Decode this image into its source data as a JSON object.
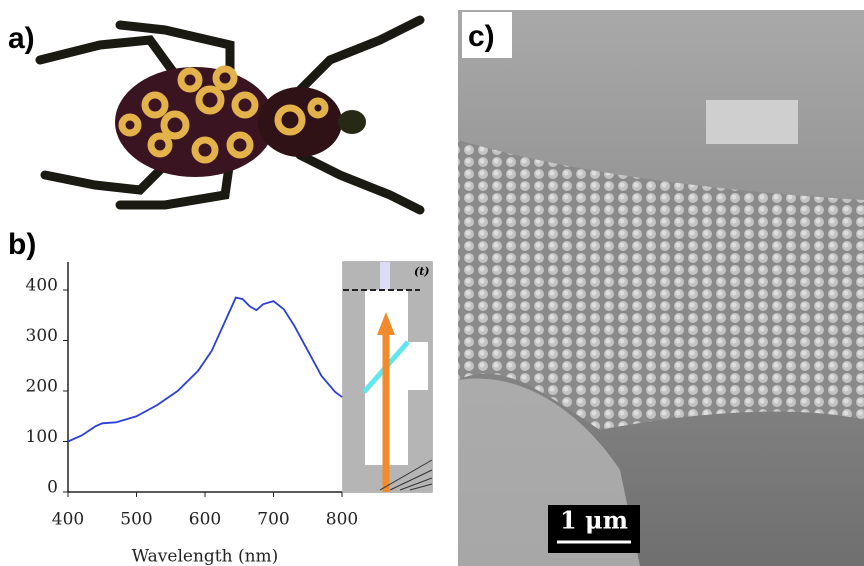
{
  "panels": {
    "a": "a)",
    "b": "b)",
    "c": "c)"
  },
  "chart_data": {
    "type": "line",
    "xlabel": "Wavelength (nm)",
    "x": [
      400,
      420,
      440,
      450,
      470,
      500,
      530,
      560,
      590,
      610,
      630,
      645,
      655,
      665,
      675,
      685,
      700,
      715,
      730,
      750,
      770,
      790,
      800
    ],
    "series": [
      {
        "name": "spectrum",
        "color": "#2b3fd6",
        "values": [
          100,
          112,
          130,
          136,
          138,
          150,
          172,
          200,
          240,
          280,
          340,
          385,
          382,
          368,
          360,
          372,
          378,
          362,
          330,
          280,
          230,
          198,
          188
        ]
      }
    ],
    "xlim": [
      400,
      800
    ],
    "ylim": [
      0,
      400
    ],
    "xticks": [
      400,
      500,
      600,
      700,
      800
    ],
    "yticks": [
      0,
      100,
      200,
      300,
      400
    ]
  },
  "diagram": {
    "label": "(t)"
  },
  "scale_bar": "1 μm"
}
